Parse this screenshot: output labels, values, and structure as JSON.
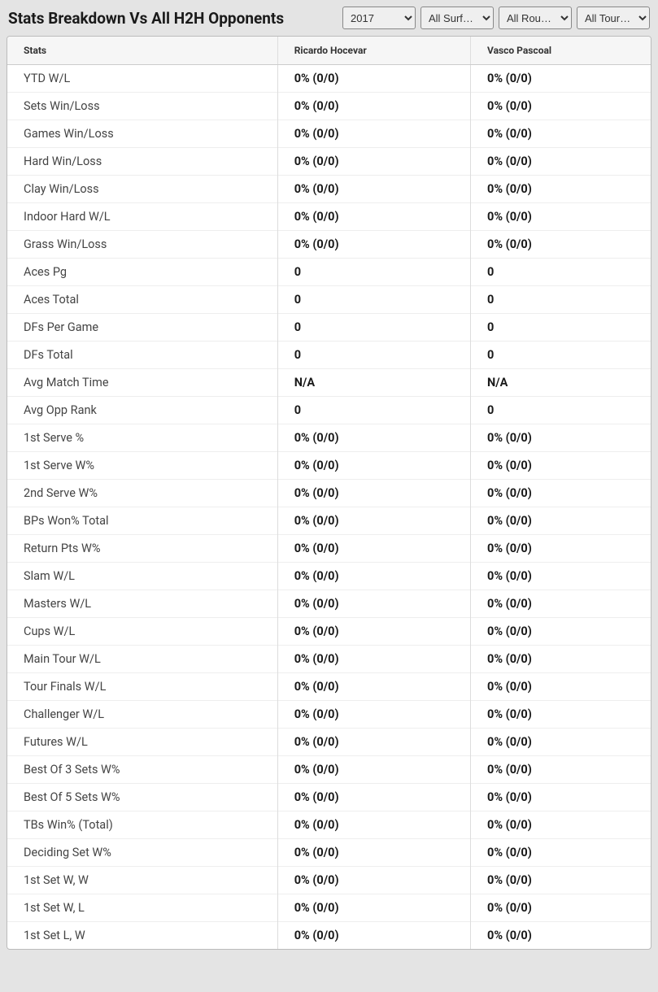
{
  "header": {
    "title": "Stats Breakdown Vs All H2H Opponents"
  },
  "filters": {
    "year": "2017",
    "surface": "All Surf…",
    "round": "All Rou…",
    "tournament": "All Tour…"
  },
  "table": {
    "columns": [
      "Stats",
      "Ricardo Hocevar",
      "Vasco Pascoal"
    ],
    "rows": [
      [
        "YTD W/L",
        "0% (0/0)",
        "0% (0/0)"
      ],
      [
        "Sets Win/Loss",
        "0% (0/0)",
        "0% (0/0)"
      ],
      [
        "Games Win/Loss",
        "0% (0/0)",
        "0% (0/0)"
      ],
      [
        "Hard Win/Loss",
        "0% (0/0)",
        "0% (0/0)"
      ],
      [
        "Clay Win/Loss",
        "0% (0/0)",
        "0% (0/0)"
      ],
      [
        "Indoor Hard W/L",
        "0% (0/0)",
        "0% (0/0)"
      ],
      [
        "Grass Win/Loss",
        "0% (0/0)",
        "0% (0/0)"
      ],
      [
        "Aces Pg",
        "0",
        "0"
      ],
      [
        "Aces Total",
        "0",
        "0"
      ],
      [
        "DFs Per Game",
        "0",
        "0"
      ],
      [
        "DFs Total",
        "0",
        "0"
      ],
      [
        "Avg Match Time",
        "N/A",
        "N/A"
      ],
      [
        "Avg Opp Rank",
        "0",
        "0"
      ],
      [
        "1st Serve %",
        "0% (0/0)",
        "0% (0/0)"
      ],
      [
        "1st Serve W%",
        "0% (0/0)",
        "0% (0/0)"
      ],
      [
        "2nd Serve W%",
        "0% (0/0)",
        "0% (0/0)"
      ],
      [
        "BPs Won% Total",
        "0% (0/0)",
        "0% (0/0)"
      ],
      [
        "Return Pts W%",
        "0% (0/0)",
        "0% (0/0)"
      ],
      [
        "Slam W/L",
        "0% (0/0)",
        "0% (0/0)"
      ],
      [
        "Masters W/L",
        "0% (0/0)",
        "0% (0/0)"
      ],
      [
        "Cups W/L",
        "0% (0/0)",
        "0% (0/0)"
      ],
      [
        "Main Tour W/L",
        "0% (0/0)",
        "0% (0/0)"
      ],
      [
        "Tour Finals W/L",
        "0% (0/0)",
        "0% (0/0)"
      ],
      [
        "Challenger W/L",
        "0% (0/0)",
        "0% (0/0)"
      ],
      [
        "Futures W/L",
        "0% (0/0)",
        "0% (0/0)"
      ],
      [
        "Best Of 3 Sets W%",
        "0% (0/0)",
        "0% (0/0)"
      ],
      [
        "Best Of 5 Sets W%",
        "0% (0/0)",
        "0% (0/0)"
      ],
      [
        "TBs Win% (Total)",
        "0% (0/0)",
        "0% (0/0)"
      ],
      [
        "Deciding Set W%",
        "0% (0/0)",
        "0% (0/0)"
      ],
      [
        "1st Set W, W",
        "0% (0/0)",
        "0% (0/0)"
      ],
      [
        "1st Set W, L",
        "0% (0/0)",
        "0% (0/0)"
      ],
      [
        "1st Set L, W",
        "0% (0/0)",
        "0% (0/0)"
      ]
    ]
  }
}
